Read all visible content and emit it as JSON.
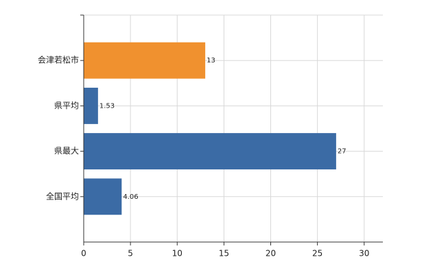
{
  "chart_data": {
    "type": "hbar",
    "categories": [
      "会津若松市",
      "県平均",
      "県最大",
      "全国平均"
    ],
    "values": [
      13,
      1.53,
      27,
      4.06
    ],
    "colors": [
      "#f0912f",
      "#3b6ba5",
      "#3b6ba5",
      "#3b6ba5"
    ],
    "xlim": [
      0,
      32
    ],
    "xticks": [
      0,
      5,
      10,
      15,
      20,
      25,
      30
    ],
    "grid": true
  }
}
